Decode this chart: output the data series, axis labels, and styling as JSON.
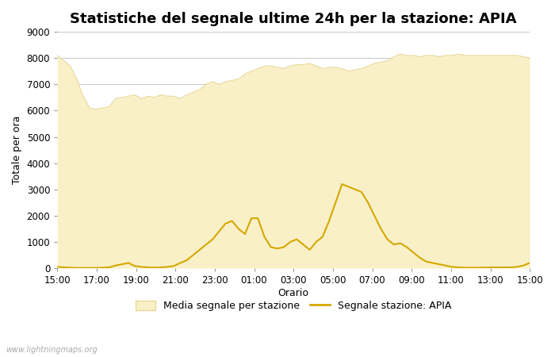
{
  "title": "Statistiche del segnale ultime 24h per la stazione: APIA",
  "xlabel": "Orario",
  "ylabel": "Totale per ora",
  "ylim": [
    0,
    9000
  ],
  "yticks": [
    0,
    1000,
    2000,
    3000,
    4000,
    5000,
    6000,
    7000,
    8000,
    9000
  ],
  "xtick_labels": [
    "15:00",
    "17:00",
    "19:00",
    "21:00",
    "23:00",
    "01:00",
    "03:00",
    "05:00",
    "07:00",
    "09:00",
    "11:00",
    "13:00",
    "15:00"
  ],
  "fill_color": "#FAF0C8",
  "fill_edge_color": "#E8D898",
  "line_color": "#D4A800",
  "background_color": "#ffffff",
  "grid_color": "#cccccc",
  "watermark": "www.lightningmaps.org",
  "legend_fill_label": "Media segnale per stazione",
  "legend_line_label": "Segnale stazione: APIA",
  "avg_signal": [
    8100,
    7900,
    7700,
    7200,
    6550,
    6100,
    6050,
    6100,
    6150,
    6450,
    6500,
    6550,
    6600,
    6450,
    6550,
    6500,
    6600,
    6550,
    6550,
    6450,
    6600,
    6700,
    6800,
    7000,
    7100,
    7000,
    7100,
    7150,
    7200,
    7400,
    7500,
    7600,
    7700,
    7700,
    7650,
    7600,
    7700,
    7750,
    7750,
    7800,
    7700,
    7600,
    7650,
    7650,
    7600,
    7500,
    7550,
    7600,
    7700,
    7800,
    7850,
    7900,
    8050,
    8150,
    8100,
    8100,
    8050,
    8100,
    8100,
    8050,
    8100,
    8100,
    8150,
    8100,
    8100,
    8100,
    8100,
    8100,
    8100,
    8100,
    8100,
    8100,
    8050,
    8000
  ],
  "station_signal": [
    50,
    30,
    20,
    10,
    10,
    10,
    10,
    20,
    30,
    100,
    150,
    200,
    80,
    50,
    30,
    20,
    30,
    50,
    80,
    200,
    300,
    500,
    700,
    900,
    1100,
    1400,
    1700,
    1800,
    1500,
    1300,
    1900,
    1900,
    1200,
    800,
    750,
    800,
    1000,
    1100,
    900,
    700,
    1000,
    1200,
    1800,
    2500,
    3200,
    3100,
    3000,
    2900,
    2500,
    2000,
    1500,
    1100,
    900,
    950,
    800,
    600,
    400,
    250,
    200,
    150,
    100,
    50,
    30,
    20,
    20,
    20,
    20,
    30,
    30,
    30,
    30,
    50,
    100,
    200
  ],
  "title_fontsize": 13,
  "label_fontsize": 9,
  "tick_fontsize": 8.5
}
